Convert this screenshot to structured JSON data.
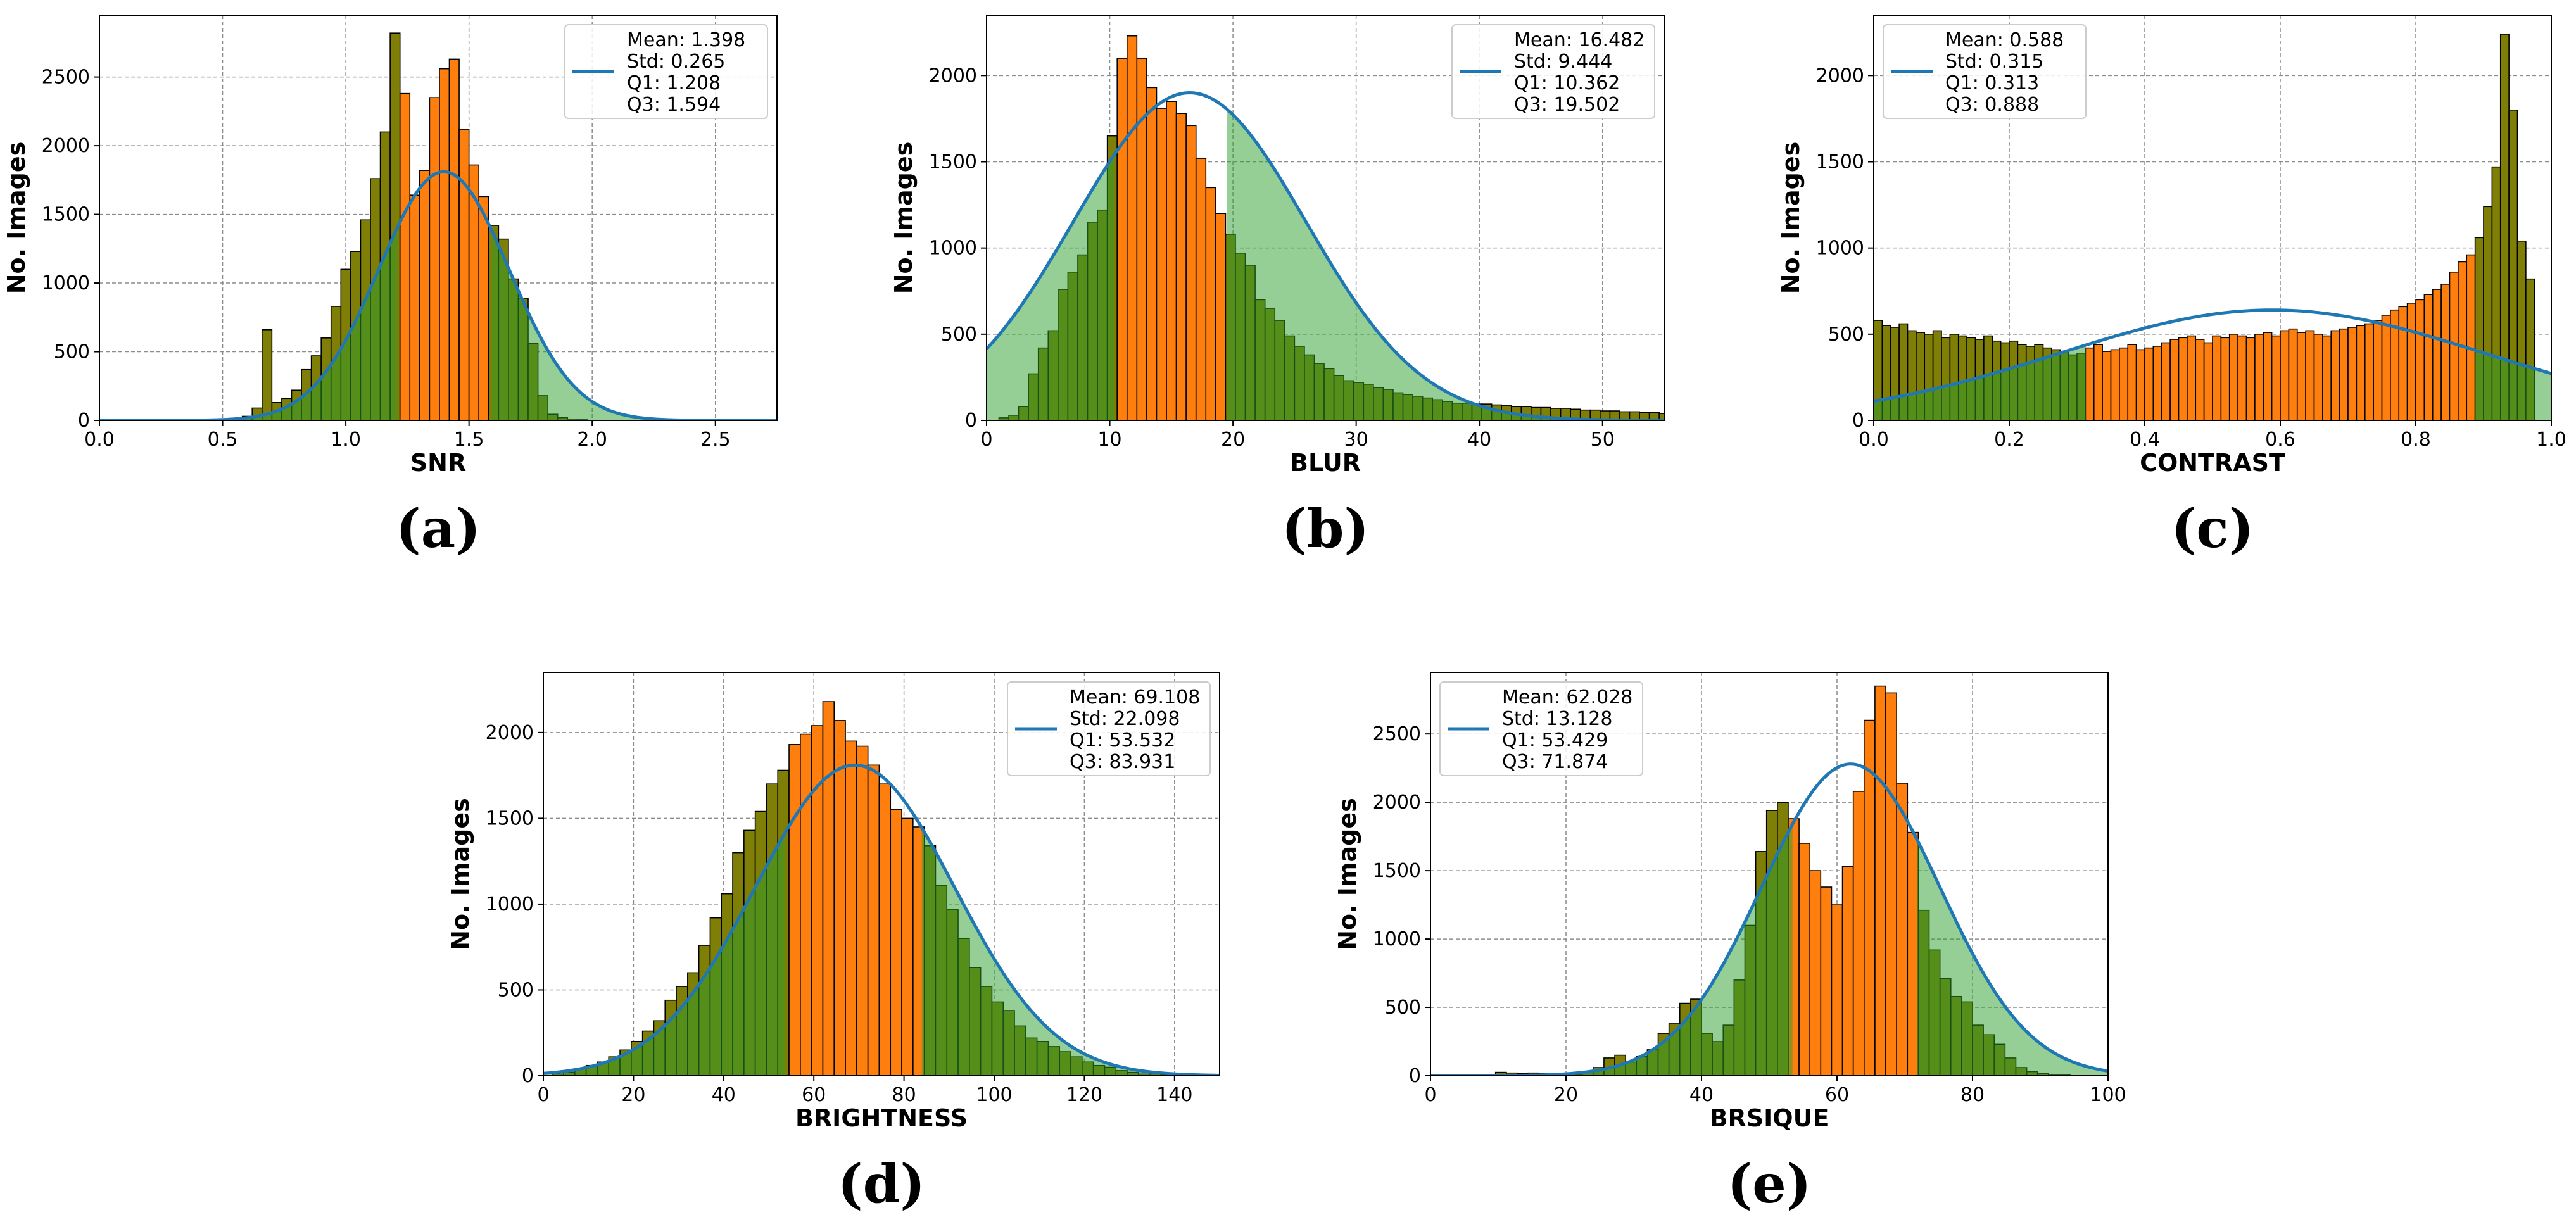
{
  "colors": {
    "bar": "#ff7f0e",
    "bar_in_shade": "#7f7f07",
    "bar_edge": "#000000",
    "curve": "#1f77b4",
    "shade": "#2ca02c",
    "grid": "#8c8c8c"
  },
  "chart_data": [
    {
      "type": "bar",
      "panel_label": "(a)",
      "xlabel": "SNR",
      "ylabel": "No. Images",
      "xlim": [
        0,
        2.75
      ],
      "ylim": [
        0,
        2950
      ],
      "xticks": [
        0,
        0.5,
        1.0,
        1.5,
        2.0,
        2.5
      ],
      "xtick_labels": [
        "0.0",
        "0.5",
        "1.0",
        "1.5",
        "2.0",
        "2.5"
      ],
      "yticks": [
        0,
        500,
        1000,
        1500,
        2000,
        2500
      ],
      "ytick_labels": [
        "0",
        "500",
        "1000",
        "1500",
        "2000",
        "2500"
      ],
      "legend_position": "top-right",
      "legend_lines": [
        "Mean: 1.398",
        "Std: 0.265",
        "Q1: 1.208",
        "Q3: 1.594"
      ],
      "stats": {
        "mean": 1.398,
        "std": 0.265,
        "q1": 1.208,
        "q3": 1.594
      },
      "curve_peak": 1810,
      "bin_start": 0.5,
      "bin_width": 0.04,
      "values": [
        0,
        5,
        30,
        90,
        660,
        130,
        160,
        220,
        370,
        470,
        600,
        830,
        1100,
        1230,
        1460,
        1760,
        2100,
        2820,
        2380,
        1640,
        1820,
        2350,
        2560,
        2630,
        2120,
        1860,
        1630,
        1420,
        1320,
        1030,
        890,
        560,
        180,
        45,
        20,
        10,
        5
      ]
    },
    {
      "type": "bar",
      "panel_label": "(b)",
      "xlabel": "BLUR",
      "ylabel": "No. Images",
      "xlim": [
        0,
        55
      ],
      "ylim": [
        0,
        2350
      ],
      "xticks": [
        0,
        10,
        20,
        30,
        40,
        50
      ],
      "xtick_labels": [
        "0",
        "10",
        "20",
        "30",
        "40",
        "50"
      ],
      "yticks": [
        0,
        500,
        1000,
        1500,
        2000
      ],
      "ytick_labels": [
        "0",
        "500",
        "1000",
        "1500",
        "2000"
      ],
      "legend_position": "top-right",
      "legend_lines": [
        "Mean: 16.482",
        "Std: 9.444",
        "Q1: 10.362",
        "Q3: 19.502"
      ],
      "stats": {
        "mean": 16.482,
        "std": 9.444,
        "q1": 10.362,
        "q3": 19.502
      },
      "curve_peak": 1900,
      "bin_start": 1.0,
      "bin_width": 0.8,
      "values": [
        15,
        30,
        80,
        270,
        420,
        520,
        760,
        860,
        960,
        1150,
        1220,
        1650,
        2100,
        2230,
        2100,
        1930,
        1810,
        1850,
        1780,
        1710,
        1520,
        1350,
        1200,
        1080,
        970,
        900,
        700,
        650,
        580,
        490,
        430,
        380,
        330,
        300,
        260,
        230,
        220,
        210,
        190,
        180,
        160,
        150,
        140,
        130,
        120,
        110,
        100,
        100,
        95,
        95,
        90,
        85,
        80,
        80,
        75,
        75,
        70,
        70,
        65,
        60,
        60,
        55,
        55,
        50,
        50,
        45,
        45,
        40,
        40,
        35,
        35,
        30,
        30,
        25,
        25,
        20,
        20,
        15,
        15,
        15,
        10,
        10,
        10,
        10,
        10,
        10,
        15,
        15,
        10,
        10,
        10,
        10,
        10,
        10,
        10,
        10,
        10,
        5,
        5,
        5,
        5,
        5,
        5,
        5,
        5,
        5,
        5,
        5,
        5,
        5,
        5
      ]
    },
    {
      "type": "bar",
      "panel_label": "(c)",
      "xlabel": "CONTRAST",
      "ylabel": "No. Images",
      "xlim": [
        0,
        1.0
      ],
      "ylim": [
        0,
        2350
      ],
      "xticks": [
        0,
        0.2,
        0.4,
        0.6,
        0.8,
        1.0
      ],
      "xtick_labels": [
        "0.0",
        "0.2",
        "0.4",
        "0.6",
        "0.8",
        "1.0"
      ],
      "yticks": [
        0,
        500,
        1000,
        1500,
        2000
      ],
      "ytick_labels": [
        "0",
        "500",
        "1000",
        "1500",
        "2000"
      ],
      "legend_position": "top-left",
      "legend_lines": [
        "Mean: 0.588",
        "Std: 0.315",
        "Q1: 0.313",
        "Q3: 0.888"
      ],
      "stats": {
        "mean": 0.588,
        "std": 0.315,
        "q1": 0.313,
        "q3": 0.888
      },
      "curve_peak": 640,
      "bin_start": 0.0,
      "bin_width": 0.0125,
      "values": [
        580,
        550,
        540,
        560,
        520,
        510,
        500,
        520,
        480,
        500,
        490,
        480,
        470,
        490,
        460,
        450,
        460,
        440,
        430,
        440,
        420,
        410,
        400,
        380,
        390,
        420,
        440,
        400,
        410,
        420,
        440,
        410,
        420,
        430,
        450,
        470,
        480,
        490,
        470,
        450,
        490,
        480,
        500,
        490,
        480,
        500,
        510,
        490,
        520,
        530,
        510,
        520,
        500,
        490,
        520,
        530,
        540,
        550,
        560,
        580,
        610,
        640,
        660,
        680,
        700,
        730,
        760,
        790,
        860,
        920,
        960,
        1060,
        1240,
        1470,
        2240,
        1800,
        1040,
        820
      ]
    },
    {
      "type": "bar",
      "panel_label": "(d)",
      "xlabel": "BRIGHTNESS",
      "ylabel": "No. Images",
      "xlim": [
        0,
        150
      ],
      "ylim": [
        0,
        2350
      ],
      "xticks": [
        0,
        20,
        40,
        60,
        80,
        100,
        120,
        140
      ],
      "xtick_labels": [
        "0",
        "20",
        "40",
        "60",
        "80",
        "100",
        "120",
        "140"
      ],
      "yticks": [
        0,
        500,
        1000,
        1500,
        2000
      ],
      "ytick_labels": [
        "0",
        "500",
        "1000",
        "1500",
        "2000"
      ],
      "legend_position": "top-right",
      "legend_lines": [
        "Mean: 69.108",
        "Std: 22.098",
        "Q1: 53.532",
        "Q3: 83.931"
      ],
      "stats": {
        "mean": 69.108,
        "std": 22.098,
        "q1": 53.532,
        "q3": 83.931
      },
      "curve_peak": 1810,
      "bin_start": 2.0,
      "bin_width": 2.5,
      "values": [
        10,
        20,
        40,
        60,
        80,
        110,
        150,
        200,
        260,
        320,
        440,
        520,
        600,
        760,
        920,
        1060,
        1300,
        1430,
        1540,
        1700,
        1780,
        1930,
        1990,
        2040,
        2180,
        2070,
        1950,
        1920,
        1810,
        1700,
        1550,
        1500,
        1450,
        1340,
        1110,
        970,
        800,
        630,
        520,
        430,
        380,
        290,
        220,
        200,
        170,
        140,
        110,
        80,
        60,
        50,
        30,
        20,
        10,
        10,
        5
      ]
    },
    {
      "type": "bar",
      "panel_label": "(e)",
      "xlabel": "BRSIQUE",
      "ylabel": "No. Images",
      "xlim": [
        0,
        100
      ],
      "ylim": [
        0,
        2950
      ],
      "xticks": [
        0,
        20,
        40,
        60,
        80,
        100
      ],
      "xtick_labels": [
        "0",
        "20",
        "40",
        "60",
        "80",
        "100"
      ],
      "yticks": [
        0,
        500,
        1000,
        1500,
        2000,
        2500
      ],
      "ytick_labels": [
        "0",
        "500",
        "1000",
        "1500",
        "2000",
        "2500"
      ],
      "legend_position": "top-left",
      "legend_lines": [
        "Mean: 62.028",
        "Std: 13.128",
        "Q1: 53.429",
        "Q3: 71.874"
      ],
      "stats": {
        "mean": 62.028,
        "std": 13.128,
        "q1": 53.429,
        "q3": 71.874
      },
      "curve_peak": 2280,
      "bin_start": 8.0,
      "bin_width": 1.6,
      "values": [
        10,
        25,
        20,
        15,
        20,
        15,
        10,
        10,
        10,
        30,
        60,
        130,
        150,
        100,
        140,
        190,
        310,
        380,
        530,
        560,
        310,
        250,
        370,
        700,
        1100,
        1640,
        1940,
        2000,
        1880,
        1700,
        1500,
        1380,
        1250,
        1530,
        2080,
        2600,
        2850,
        2800,
        2140,
        1780,
        1210,
        920,
        710,
        580,
        540,
        370,
        300,
        230,
        130,
        60,
        30,
        15,
        5,
        5
      ]
    }
  ]
}
